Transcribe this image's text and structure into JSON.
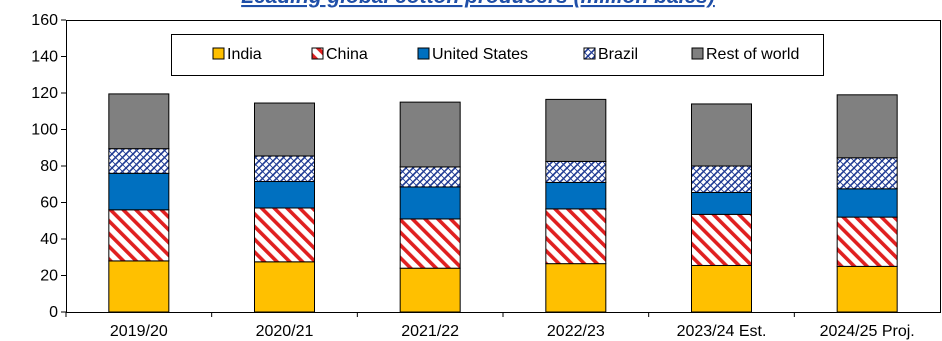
{
  "chart_data": {
    "type": "bar",
    "stacked": true,
    "title": "Leading global cotton producers (million bales)",
    "categories": [
      "2019/20",
      "2020/21",
      "2021/22",
      "2022/23",
      "2023/24 Est.",
      "2024/25 Proj."
    ],
    "ylim": [
      0,
      160
    ],
    "yticks": [
      0,
      20,
      40,
      60,
      80,
      100,
      120,
      140,
      160
    ],
    "grid": false,
    "legend_position": "top",
    "series": [
      {
        "name": "India",
        "color": "#ffc000",
        "pattern": "solid",
        "values": [
          28.0,
          27.5,
          24.0,
          26.5,
          25.5,
          25.0
        ]
      },
      {
        "name": "China",
        "color": "#e02020",
        "pattern": "diagonal-stripes",
        "values": [
          28.0,
          29.5,
          27.0,
          30.0,
          28.0,
          27.0
        ]
      },
      {
        "name": "United States",
        "color": "#0070c0",
        "pattern": "solid",
        "values": [
          20.0,
          14.5,
          17.5,
          14.5,
          12.0,
          15.5
        ]
      },
      {
        "name": "Brazil",
        "color": "#1f3a93",
        "pattern": "crosshatch",
        "values": [
          13.5,
          14.0,
          11.0,
          11.5,
          14.5,
          17.0
        ]
      },
      {
        "name": "Rest of world",
        "color": "#808080",
        "pattern": "solid",
        "values": [
          30.0,
          29.0,
          35.5,
          34.0,
          34.0,
          34.5
        ]
      }
    ]
  }
}
